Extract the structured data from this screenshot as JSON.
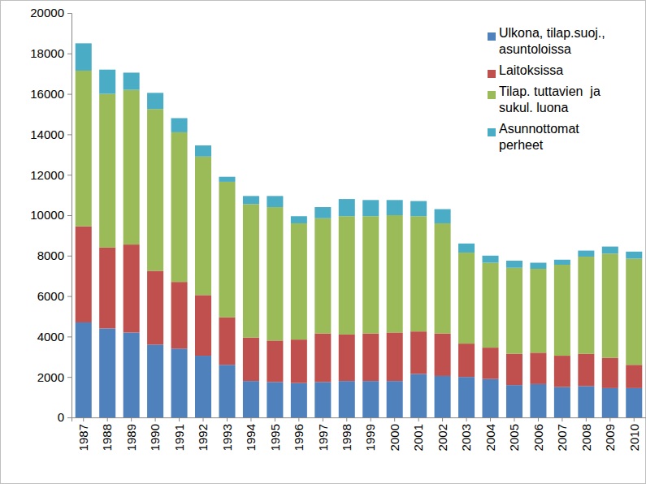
{
  "chart_data": {
    "type": "bar",
    "stacked": true,
    "grid": false,
    "legend": "top-right",
    "categories": [
      "1987",
      "1988",
      "1989",
      "1990",
      "1991",
      "1992",
      "1993",
      "1994",
      "1995",
      "1996",
      "1997",
      "1998",
      "1999",
      "2000",
      "2001",
      "2002",
      "2003",
      "2004",
      "2005",
      "2006",
      "2007",
      "2008",
      "2009",
      "2010"
    ],
    "series": [
      {
        "name": "Ulkona, tilap.suoj., asuntoloissa",
        "color": "#4f81bd",
        "values": [
          4700,
          4400,
          4200,
          3600,
          3400,
          3050,
          2600,
          1800,
          1750,
          1700,
          1750,
          1800,
          1800,
          1800,
          2150,
          2050,
          2000,
          1900,
          1600,
          1650,
          1500,
          1550,
          1450,
          1450
        ]
      },
      {
        "name": "Laitoksissa",
        "color": "#c0504d",
        "values": [
          4750,
          4000,
          4350,
          3650,
          3300,
          3000,
          2350,
          2150,
          2050,
          2150,
          2400,
          2300,
          2350,
          2400,
          2100,
          2100,
          1650,
          1550,
          1550,
          1550,
          1550,
          1600,
          1500,
          1150
        ]
      },
      {
        "name": "Tilap. tuttavien  ja sukul. luona",
        "color": "#9bbb59",
        "values": [
          7700,
          7600,
          7650,
          8000,
          7400,
          6850,
          6700,
          6600,
          6600,
          5750,
          5700,
          5850,
          5800,
          5800,
          5700,
          5450,
          4500,
          4200,
          4250,
          4150,
          4500,
          4800,
          5150,
          5250
        ]
      },
      {
        "name": "Asunnottomat perheet",
        "color": "#4bacc6",
        "values": [
          1350,
          1200,
          850,
          800,
          700,
          550,
          250,
          400,
          550,
          350,
          550,
          850,
          800,
          750,
          750,
          700,
          450,
          350,
          350,
          300,
          250,
          300,
          350,
          350
        ]
      }
    ],
    "ylim": [
      0,
      20000
    ],
    "yticks": [
      0,
      2000,
      4000,
      6000,
      8000,
      10000,
      12000,
      14000,
      16000,
      18000,
      20000
    ]
  }
}
